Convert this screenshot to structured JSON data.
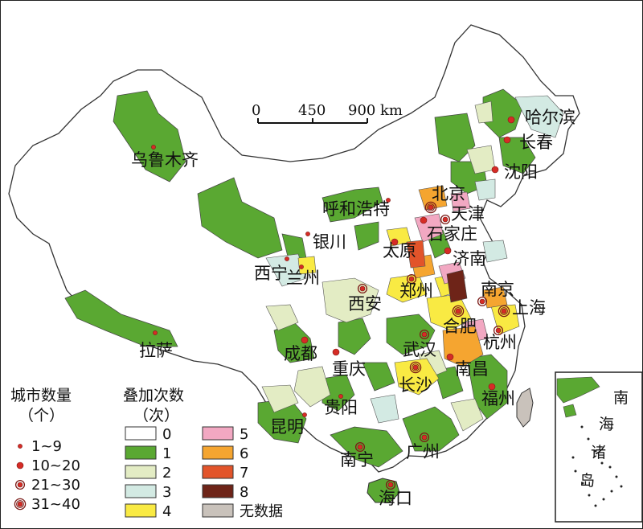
{
  "scale_bar": {
    "ticks": [
      "0",
      "450",
      "900"
    ],
    "unit": "km"
  },
  "cities": [
    {
      "name": "哈尔滨",
      "count_class": 1
    },
    {
      "name": "长春",
      "count_class": 1
    },
    {
      "name": "沈阳",
      "count_class": 1
    },
    {
      "name": "乌鲁木齐",
      "count_class": 0
    },
    {
      "name": "北京",
      "count_class": 3
    },
    {
      "name": "天津",
      "count_class": 2
    },
    {
      "name": "呼和浩特",
      "count_class": 0
    },
    {
      "name": "石家庄",
      "count_class": 1
    },
    {
      "name": "银川",
      "count_class": 0
    },
    {
      "name": "太原",
      "count_class": 1
    },
    {
      "name": "济南",
      "count_class": 1
    },
    {
      "name": "西宁",
      "count_class": 0
    },
    {
      "name": "兰州",
      "count_class": 0
    },
    {
      "name": "郑州",
      "count_class": 2
    },
    {
      "name": "南京",
      "count_class": 2
    },
    {
      "name": "西安",
      "count_class": 2
    },
    {
      "name": "合肥",
      "count_class": 3
    },
    {
      "name": "上海",
      "count_class": 3
    },
    {
      "name": "拉萨",
      "count_class": 0
    },
    {
      "name": "成都",
      "count_class": 1
    },
    {
      "name": "武汉",
      "count_class": 2
    },
    {
      "name": "杭州",
      "count_class": 2
    },
    {
      "name": "重庆",
      "count_class": 1
    },
    {
      "name": "长沙",
      "count_class": 3
    },
    {
      "name": "南昌",
      "count_class": 1
    },
    {
      "name": "贵阳",
      "count_class": 0
    },
    {
      "name": "福州",
      "count_class": 1
    },
    {
      "name": "昆明",
      "count_class": 0
    },
    {
      "name": "南宁",
      "count_class": 2
    },
    {
      "name": "广州",
      "count_class": 2
    },
    {
      "name": "海口",
      "count_class": 2
    }
  ],
  "inset": {
    "label_lines": [
      "南",
      "海",
      "诸",
      "岛"
    ]
  },
  "legend": {
    "city_count": {
      "title": "城市数量",
      "unit": "（个）",
      "items": [
        "1~9",
        "10~20",
        "21~30",
        "31~40"
      ]
    },
    "overlay_times": {
      "title": "叠加次数",
      "unit": "（次）",
      "items": [
        {
          "label": "0",
          "color": "#ffffff"
        },
        {
          "label": "1",
          "color": "#5aa832"
        },
        {
          "label": "2",
          "color": "#e3ecc4"
        },
        {
          "label": "3",
          "color": "#d3eae3"
        },
        {
          "label": "4",
          "color": "#f9ea43"
        },
        {
          "label": "5",
          "color": "#f2a8c2"
        },
        {
          "label": "6",
          "color": "#f5a530"
        },
        {
          "label": "7",
          "color": "#e2542a"
        },
        {
          "label": "8",
          "color": "#6e2418"
        },
        {
          "label": "无数据",
          "color": "#c9c2bb"
        }
      ]
    }
  },
  "colors": {
    "border": "#333333",
    "city_marker": "#d62c26",
    "city_ring": "#7a1a16",
    "taiwan": "#c9c2bb"
  }
}
